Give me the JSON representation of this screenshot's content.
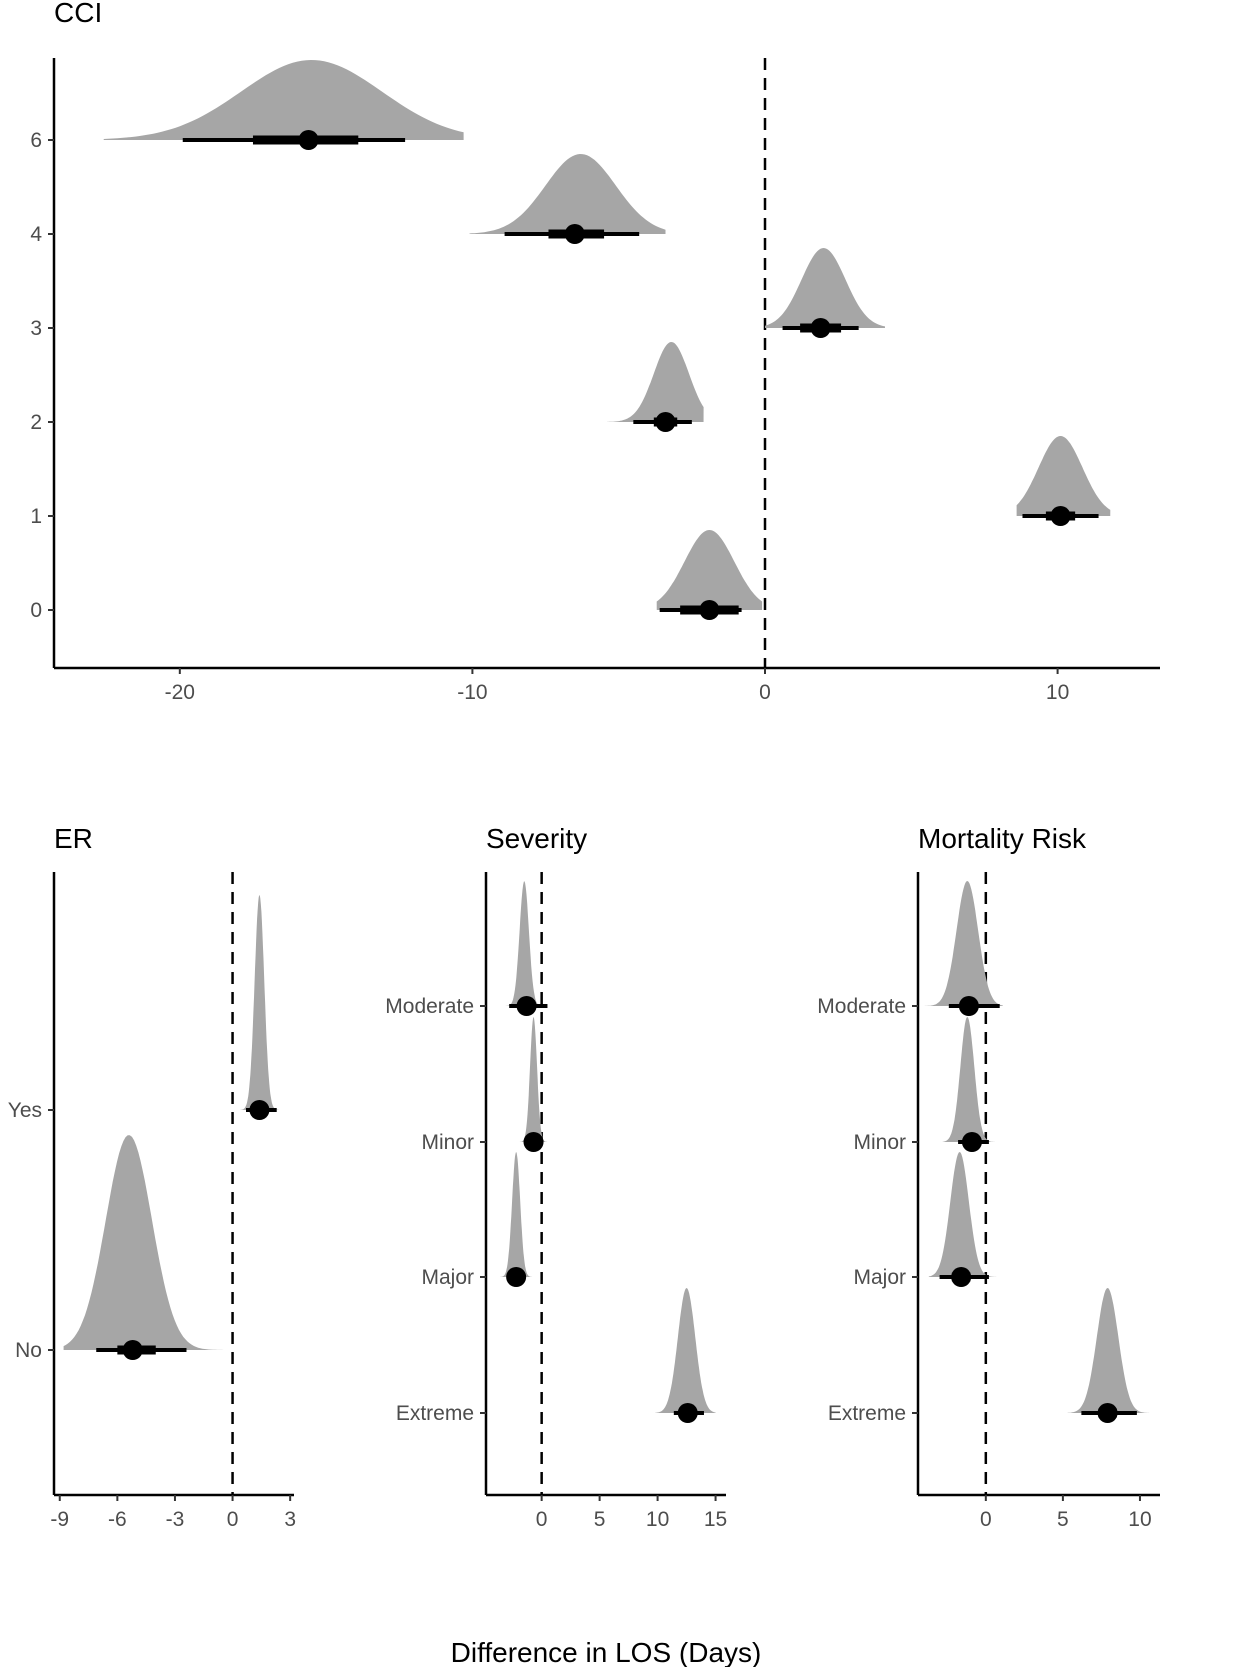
{
  "chart_data": [
    {
      "type": "halfeye",
      "title": "CCI",
      "xlabel": "",
      "ylabel": "",
      "xlim": [
        -24.3,
        13.5
      ],
      "xticks": [
        -20,
        -10,
        0,
        10
      ],
      "reference_line": 0,
      "categories": [
        "0",
        "1",
        "2",
        "3",
        "4",
        "6"
      ],
      "series": [
        {
          "category": "0",
          "median": -1.9,
          "ci66": [
            -2.9,
            -0.9
          ],
          "ci95": [
            -3.6,
            -0.8
          ],
          "dens": [
            -3.7,
            -0.1
          ],
          "peak": -1.9,
          "spread": 0.85
        },
        {
          "category": "1",
          "median": 10.1,
          "ci66": [
            9.6,
            10.6
          ],
          "ci95": [
            8.8,
            11.4
          ],
          "dens": [
            8.6,
            11.8
          ],
          "peak": 10.1,
          "spread": 0.75
        },
        {
          "category": "2",
          "median": -3.4,
          "ci66": [
            -3.8,
            -3.0
          ],
          "ci95": [
            -4.5,
            -2.5
          ],
          "dens": [
            -5.4,
            -2.1
          ],
          "peak": -3.2,
          "spread": 0.6
        },
        {
          "category": "3",
          "median": 1.9,
          "ci66": [
            1.2,
            2.6
          ],
          "ci95": [
            0.6,
            3.2
          ],
          "dens": [
            0.0,
            4.1
          ],
          "peak": 2.0,
          "spread": 0.75
        },
        {
          "category": "4",
          "median": -6.5,
          "ci66": [
            -7.4,
            -5.5
          ],
          "ci95": [
            -8.9,
            -4.3
          ],
          "dens": [
            -10.1,
            -3.4
          ],
          "peak": -6.3,
          "spread": 1.2
        },
        {
          "category": "6",
          "median": -15.6,
          "ci66": [
            -17.5,
            -13.9
          ],
          "ci95": [
            -19.9,
            -12.3
          ],
          "dens": [
            -22.6,
            -10.3
          ],
          "peak": -15.5,
          "spread": 2.4
        }
      ]
    },
    {
      "type": "halfeye",
      "title": "ER",
      "xlabel": "",
      "xlim": [
        -9.3,
        3.2
      ],
      "xticks": [
        -9,
        -6,
        -3,
        0,
        3
      ],
      "reference_line": 0,
      "categories": [
        "No",
        "Yes"
      ],
      "series": [
        {
          "category": "No",
          "median": -5.2,
          "ci66": [
            -6.0,
            -4.0
          ],
          "ci95": [
            -7.1,
            -2.4
          ],
          "dens": [
            -8.8,
            0.1
          ],
          "peak": -5.4,
          "spread": 1.2
        },
        {
          "category": "Yes",
          "median": 1.4,
          "ci66": [
            1.1,
            1.8
          ],
          "ci95": [
            0.7,
            2.3
          ],
          "dens": [
            0.4,
            2.6
          ],
          "peak": 1.4,
          "spread": 0.25
        }
      ]
    },
    {
      "type": "halfeye",
      "title": "Severity",
      "xlabel": "",
      "xlim": [
        -4.8,
        15.9
      ],
      "xticks": [
        0,
        5,
        10,
        15
      ],
      "reference_line": 0,
      "categories": [
        "Extreme",
        "Major",
        "Minor",
        "Moderate"
      ],
      "series": [
        {
          "category": "Extreme",
          "median": 12.6,
          "ci66": [
            12.0,
            13.2
          ],
          "ci95": [
            11.4,
            14.0
          ],
          "dens": [
            9.8,
            15.0
          ],
          "peak": 12.5,
          "spread": 0.75
        },
        {
          "category": "Major",
          "median": -2.2,
          "ci66": [
            -2.5,
            -1.9
          ],
          "ci95": [
            -2.9,
            -1.5
          ],
          "dens": [
            -3.6,
            -0.7
          ],
          "peak": -2.2,
          "spread": 0.35
        },
        {
          "category": "Minor",
          "median": -0.7,
          "ci66": [
            -1.0,
            -0.4
          ],
          "ci95": [
            -1.3,
            0.1
          ],
          "dens": [
            -2.1,
            0.6
          ],
          "peak": -0.7,
          "spread": 0.3
        },
        {
          "category": "Moderate",
          "median": -1.3,
          "ci66": [
            -1.7,
            -0.9
          ],
          "ci95": [
            -2.8,
            0.5
          ],
          "dens": [
            -3.6,
            1.1
          ],
          "peak": -1.5,
          "spread": 0.4
        }
      ]
    },
    {
      "type": "halfeye",
      "title": "Mortality Risk",
      "xlabel": "",
      "xlim": [
        -4.4,
        11.3
      ],
      "xticks": [
        0,
        5,
        10
      ],
      "reference_line": 0,
      "categories": [
        "Extreme",
        "Major",
        "Minor",
        "Moderate"
      ],
      "series": [
        {
          "category": "Extreme",
          "median": 7.9,
          "ci66": [
            7.3,
            8.5
          ],
          "ci95": [
            6.2,
            9.8
          ],
          "dens": [
            5.3,
            10.6
          ],
          "peak": 7.9,
          "spread": 0.7
        },
        {
          "category": "Major",
          "median": -1.6,
          "ci66": [
            -2.2,
            -1.0
          ],
          "ci95": [
            -3.0,
            0.2
          ],
          "dens": [
            -3.7,
            1.0
          ],
          "peak": -1.7,
          "spread": 0.6
        },
        {
          "category": "Minor",
          "median": -0.9,
          "ci66": [
            -1.3,
            -0.5
          ],
          "ci95": [
            -1.8,
            0.2
          ],
          "dens": [
            -2.8,
            0.6
          ],
          "peak": -1.2,
          "spread": 0.45
        },
        {
          "category": "Moderate",
          "median": -1.1,
          "ci66": [
            -1.6,
            -0.6
          ],
          "ci95": [
            -2.4,
            0.9
          ],
          "dens": [
            -4.0,
            1.1
          ],
          "peak": -1.2,
          "spread": 0.7
        }
      ]
    }
  ],
  "shared_xlabel": "Difference in LOS (Days)",
  "colors": {
    "density": "#a6a6a6",
    "interval": "#000000",
    "axis": "#000000",
    "tick_text": "#4d4d4d"
  }
}
